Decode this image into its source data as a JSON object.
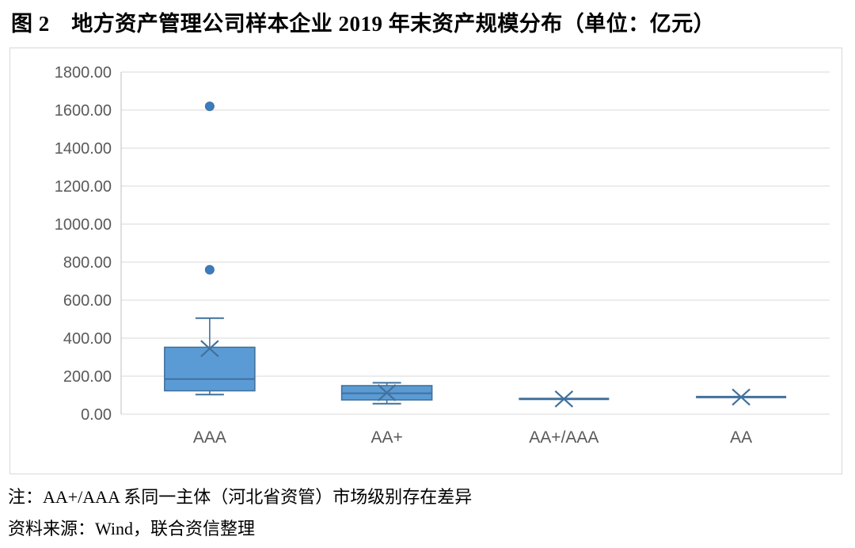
{
  "title": "图 2　地方资产管理公司样本企业 2019 年末资产规模分布（单位：亿元）",
  "notes": {
    "note1": "注：AA+/AAA 系同一主体（河北省资管）市场级别存在差异",
    "note2": "资料来源：Wind，联合资信整理"
  },
  "chart_data": {
    "type": "boxplot",
    "title": "地方资产管理公司样本企业2019年末资产规模分布",
    "unit": "亿元",
    "categories": [
      "AAA",
      "AA+",
      "AA+/AAA",
      "AA"
    ],
    "series": [
      {
        "category": "AAA",
        "min": 103,
        "q1": 123,
        "median": 185,
        "q3": 352,
        "max": 505,
        "mean": 345,
        "outliers": [
          760,
          1620
        ]
      },
      {
        "category": "AA+",
        "min": 55,
        "q1": 75,
        "median": 110,
        "q3": 150,
        "max": 165,
        "mean": 113,
        "outliers": []
      },
      {
        "category": "AA+/AAA",
        "min": 80,
        "q1": 80,
        "median": 80,
        "q3": 80,
        "max": 80,
        "mean": 80,
        "outliers": []
      },
      {
        "category": "AA",
        "min": 90,
        "q1": 90,
        "median": 90,
        "q3": 90,
        "max": 90,
        "mean": 90,
        "outliers": []
      }
    ],
    "ylim": [
      0,
      1800
    ],
    "ytick_step": 200,
    "ytick_values": [
      0,
      200,
      400,
      600,
      800,
      1000,
      1200,
      1400,
      1600,
      1800
    ],
    "ytick_labels": [
      "0.00",
      "200.00",
      "400.00",
      "600.00",
      "800.00",
      "1000.00",
      "1200.00",
      "1400.00",
      "1600.00",
      "1800.00"
    ],
    "grid": true,
    "legend": "none",
    "colors": {
      "box_fill": "#5B9BD5",
      "box_border": "#41719C",
      "whisker": "#41719C",
      "mean_marker": "#41719C",
      "outlier_dot": "#3A7CBE",
      "gridline": "#D9D9D9",
      "axis_line": "#BFBFBF",
      "tick_text": "#595959"
    }
  }
}
